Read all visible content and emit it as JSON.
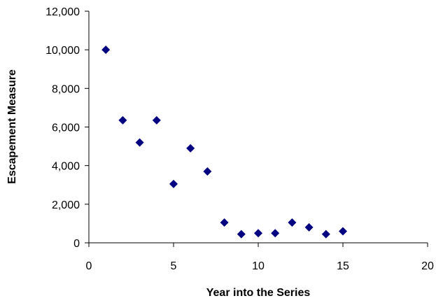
{
  "chart_data": {
    "type": "scatter",
    "xlabel": "Year into the Series",
    "ylabel": "Escapement Measure",
    "xlim": [
      0,
      20
    ],
    "ylim": [
      0,
      12000
    ],
    "xticks": [
      0,
      5,
      10,
      15,
      20
    ],
    "yticks": [
      0,
      2000,
      4000,
      6000,
      8000,
      10000,
      12000
    ],
    "xtick_labels": [
      "0",
      "5",
      "10",
      "15",
      "20"
    ],
    "ytick_labels": [
      "0",
      "2,000",
      "4,000",
      "6,000",
      "8,000",
      "10,000",
      "12,000"
    ],
    "grid": false,
    "legend": false,
    "marker": "diamond",
    "marker_color": "#000080",
    "series": [
      {
        "x": [
          1,
          2,
          3,
          4,
          5,
          6,
          7,
          8,
          9,
          10,
          11,
          12,
          13,
          14,
          15
        ],
        "y": [
          10000,
          6350,
          5200,
          6350,
          3050,
          4900,
          3700,
          1050,
          450,
          500,
          500,
          1050,
          800,
          450,
          600
        ]
      }
    ]
  }
}
